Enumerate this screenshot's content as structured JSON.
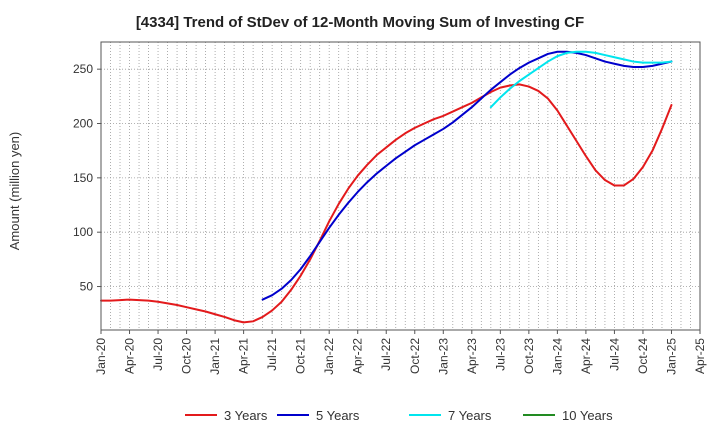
{
  "chart_data": {
    "type": "line",
    "title": "[4334]  Trend of StDev of 12-Month Moving Sum of Investing CF",
    "xlabel": "",
    "ylabel": "Amount (million yen)",
    "x_ticks": [
      "Jan-20",
      "Apr-20",
      "Jul-20",
      "Oct-20",
      "Jan-21",
      "Apr-21",
      "Jul-21",
      "Oct-21",
      "Jan-22",
      "Apr-22",
      "Jul-22",
      "Oct-22",
      "Jan-23",
      "Apr-23",
      "Jul-23",
      "Oct-23",
      "Jan-24",
      "Apr-24",
      "Jul-24",
      "Oct-24",
      "Jan-25",
      "Apr-25"
    ],
    "y_ticks": [
      50,
      100,
      150,
      200,
      250
    ],
    "xlim": [
      "2020-01",
      "2025-04"
    ],
    "ylim": [
      10,
      275
    ],
    "grid": true,
    "legend_position": "bottom",
    "series": [
      {
        "name": "3 Years",
        "color": "#e31a1c",
        "points": [
          [
            "2020-01",
            37
          ],
          [
            "2020-02",
            37
          ],
          [
            "2020-03",
            37.5
          ],
          [
            "2020-04",
            38
          ],
          [
            "2020-05",
            37.5
          ],
          [
            "2020-06",
            37
          ],
          [
            "2020-07",
            36
          ],
          [
            "2020-08",
            34.5
          ],
          [
            "2020-09",
            33
          ],
          [
            "2020-10",
            31
          ],
          [
            "2020-11",
            29
          ],
          [
            "2020-12",
            27
          ],
          [
            "2021-01",
            24.5
          ],
          [
            "2021-02",
            22
          ],
          [
            "2021-03",
            19
          ],
          [
            "2021-04",
            17
          ],
          [
            "2021-05",
            18
          ],
          [
            "2021-06",
            22
          ],
          [
            "2021-07",
            28
          ],
          [
            "2021-08",
            36
          ],
          [
            "2021-09",
            47
          ],
          [
            "2021-10",
            60
          ],
          [
            "2021-11",
            75
          ],
          [
            "2021-12",
            92
          ],
          [
            "2022-01",
            110
          ],
          [
            "2022-02",
            126
          ],
          [
            "2022-03",
            140
          ],
          [
            "2022-04",
            152
          ],
          [
            "2022-05",
            162
          ],
          [
            "2022-06",
            171
          ],
          [
            "2022-07",
            178
          ],
          [
            "2022-08",
            185
          ],
          [
            "2022-09",
            191
          ],
          [
            "2022-10",
            196
          ],
          [
            "2022-11",
            200
          ],
          [
            "2022-12",
            204
          ],
          [
            "2023-01",
            207
          ],
          [
            "2023-02",
            211
          ],
          [
            "2023-03",
            215
          ],
          [
            "2023-04",
            219
          ],
          [
            "2023-05",
            224
          ],
          [
            "2023-06",
            229
          ],
          [
            "2023-07",
            233
          ],
          [
            "2023-08",
            235
          ],
          [
            "2023-09",
            236
          ],
          [
            "2023-10",
            234
          ],
          [
            "2023-11",
            230
          ],
          [
            "2023-12",
            223
          ],
          [
            "2024-01",
            212
          ],
          [
            "2024-02",
            198
          ],
          [
            "2024-03",
            184
          ],
          [
            "2024-04",
            170
          ],
          [
            "2024-05",
            157
          ],
          [
            "2024-06",
            148
          ],
          [
            "2024-07",
            143
          ],
          [
            "2024-08",
            143
          ],
          [
            "2024-09",
            149
          ],
          [
            "2024-10",
            160
          ],
          [
            "2024-11",
            175
          ],
          [
            "2024-12",
            195
          ],
          [
            "2025-01",
            217
          ]
        ]
      },
      {
        "name": "5 Years",
        "color": "#0000cc",
        "points": [
          [
            "2021-06",
            38
          ],
          [
            "2021-07",
            42
          ],
          [
            "2021-08",
            48
          ],
          [
            "2021-09",
            56
          ],
          [
            "2021-10",
            66
          ],
          [
            "2021-11",
            78
          ],
          [
            "2021-12",
            91
          ],
          [
            "2022-01",
            104
          ],
          [
            "2022-02",
            116
          ],
          [
            "2022-03",
            127
          ],
          [
            "2022-04",
            137
          ],
          [
            "2022-05",
            146
          ],
          [
            "2022-06",
            154
          ],
          [
            "2022-07",
            161
          ],
          [
            "2022-08",
            168
          ],
          [
            "2022-09",
            174
          ],
          [
            "2022-10",
            180
          ],
          [
            "2022-11",
            185
          ],
          [
            "2022-12",
            190
          ],
          [
            "2023-01",
            195
          ],
          [
            "2023-02",
            201
          ],
          [
            "2023-03",
            208
          ],
          [
            "2023-04",
            215
          ],
          [
            "2023-05",
            223
          ],
          [
            "2023-06",
            231
          ],
          [
            "2023-07",
            238
          ],
          [
            "2023-08",
            245
          ],
          [
            "2023-09",
            251
          ],
          [
            "2023-10",
            256
          ],
          [
            "2023-11",
            260
          ],
          [
            "2023-12",
            264
          ],
          [
            "2024-01",
            266
          ],
          [
            "2024-02",
            266
          ],
          [
            "2024-03",
            265
          ],
          [
            "2024-04",
            263
          ],
          [
            "2024-05",
            260
          ],
          [
            "2024-06",
            257
          ],
          [
            "2024-07",
            255
          ],
          [
            "2024-08",
            253
          ],
          [
            "2024-09",
            252
          ],
          [
            "2024-10",
            252
          ],
          [
            "2024-11",
            253
          ],
          [
            "2024-12",
            255
          ],
          [
            "2025-01",
            257
          ]
        ]
      },
      {
        "name": "7 Years",
        "color": "#00e5ee",
        "points": [
          [
            "2023-06",
            215
          ],
          [
            "2023-07",
            224
          ],
          [
            "2023-08",
            232
          ],
          [
            "2023-09",
            239
          ],
          [
            "2023-10",
            245
          ],
          [
            "2023-11",
            251
          ],
          [
            "2023-12",
            257
          ],
          [
            "2024-01",
            262
          ],
          [
            "2024-02",
            265
          ],
          [
            "2024-03",
            266
          ],
          [
            "2024-04",
            266
          ],
          [
            "2024-05",
            265
          ],
          [
            "2024-06",
            263
          ],
          [
            "2024-07",
            261
          ],
          [
            "2024-08",
            259
          ],
          [
            "2024-09",
            257
          ],
          [
            "2024-10",
            256
          ],
          [
            "2024-11",
            256
          ],
          [
            "2024-12",
            256
          ],
          [
            "2025-01",
            257
          ]
        ]
      },
      {
        "name": "10 Years",
        "color": "#228b22",
        "points": []
      }
    ]
  }
}
